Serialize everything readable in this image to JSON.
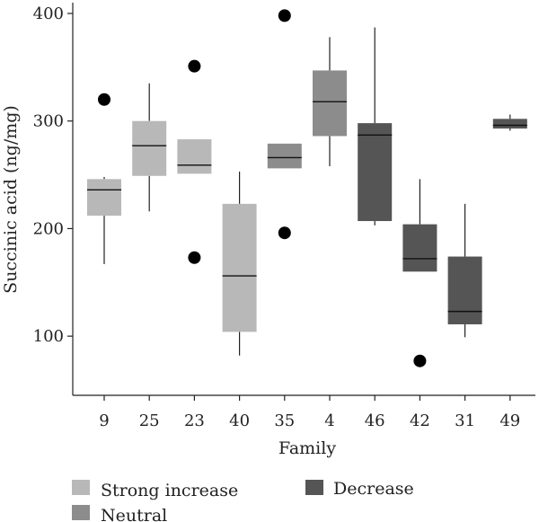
{
  "chart_data": {
    "type": "box",
    "xlabel": "Family",
    "ylabel": "Succinic acid (ng/mg)",
    "ylim": [
      45,
      410
    ],
    "yticks": [
      100,
      200,
      300,
      400
    ],
    "grid": false,
    "legend_position": "bottom",
    "groups": [
      {
        "name": "Strong increase",
        "color": "#b8b8b8"
      },
      {
        "name": "Neutral",
        "color": "#8c8c8c"
      },
      {
        "name": "Decrease",
        "color": "#555555"
      }
    ],
    "boxes": [
      {
        "family": "9",
        "group": "Strong increase",
        "whisker_low": 167,
        "q1": 212,
        "median": 236,
        "q3": 246,
        "whisker_high": 248,
        "outliers": [
          320
        ]
      },
      {
        "family": "25",
        "group": "Strong increase",
        "whisker_low": 216,
        "q1": 249,
        "median": 277,
        "q3": 300,
        "whisker_high": 335,
        "outliers": []
      },
      {
        "family": "23",
        "group": "Strong increase",
        "whisker_low": 251,
        "q1": 251,
        "median": 259,
        "q3": 283,
        "whisker_high": 283,
        "outliers": [
          351,
          173
        ]
      },
      {
        "family": "40",
        "group": "Strong increase",
        "whisker_low": 82,
        "q1": 104,
        "median": 156,
        "q3": 223,
        "whisker_high": 253,
        "outliers": []
      },
      {
        "family": "35",
        "group": "Neutral",
        "whisker_low": 256,
        "q1": 256,
        "median": 266,
        "q3": 279,
        "whisker_high": 279,
        "outliers": [
          398,
          196
        ]
      },
      {
        "family": "4",
        "group": "Neutral",
        "whisker_low": 258,
        "q1": 286,
        "median": 318,
        "q3": 347,
        "whisker_high": 378,
        "outliers": []
      },
      {
        "family": "46",
        "group": "Decrease",
        "whisker_low": 203,
        "q1": 207,
        "median": 287,
        "q3": 298,
        "whisker_high": 387,
        "outliers": []
      },
      {
        "family": "42",
        "group": "Decrease",
        "whisker_low": 160,
        "q1": 160,
        "median": 172,
        "q3": 204,
        "whisker_high": 246,
        "outliers": [
          77
        ]
      },
      {
        "family": "31",
        "group": "Decrease",
        "whisker_low": 99,
        "q1": 111,
        "median": 123,
        "q3": 174,
        "whisker_high": 223,
        "outliers": []
      },
      {
        "family": "49",
        "group": "Decrease",
        "whisker_low": 291,
        "q1": 293,
        "median": 296,
        "q3": 302,
        "whisker_high": 306,
        "outliers": []
      }
    ]
  }
}
